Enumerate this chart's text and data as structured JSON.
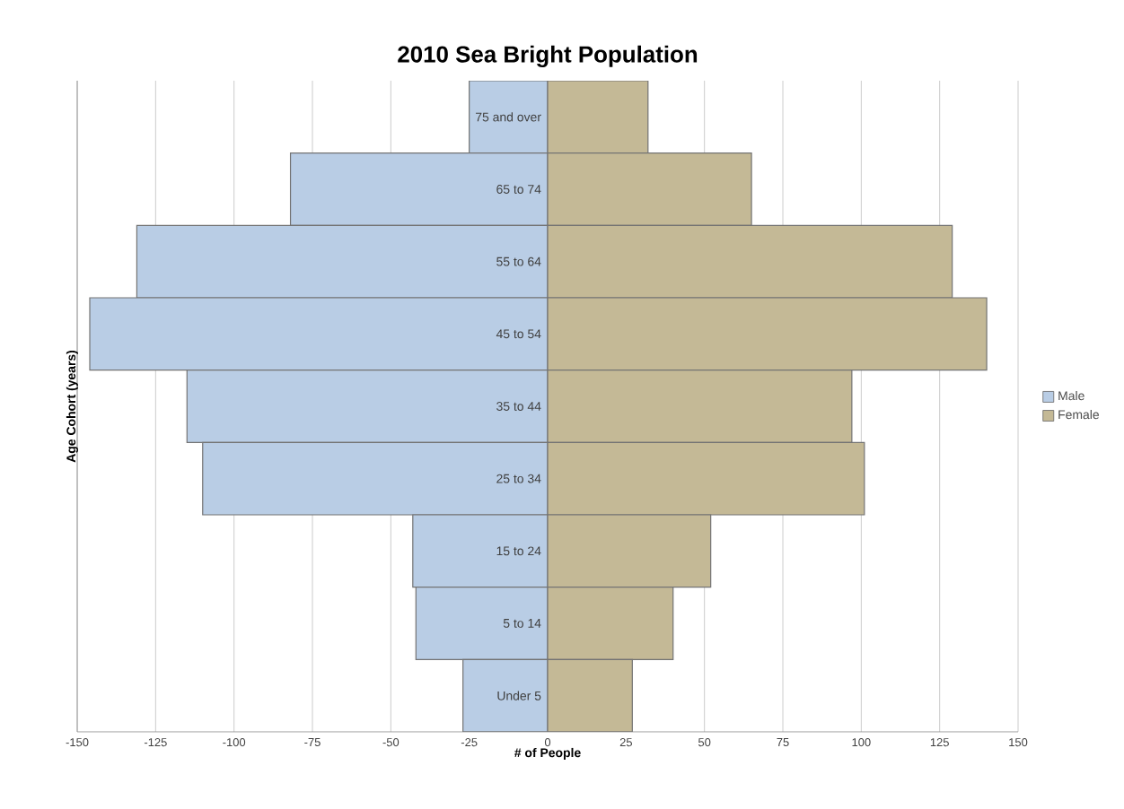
{
  "chart_data": {
    "type": "bar",
    "orientation": "horizontal",
    "title": "2010 Sea Bright Population",
    "xlabel": "# of People",
    "ylabel": "Age Cohort (years)",
    "categories": [
      "75 and over",
      "65 to 74",
      "55 to 64",
      "45 to 54",
      "35 to 44",
      "25 to 34",
      "15 to 24",
      "5 to 14",
      "Under 5"
    ],
    "series": [
      {
        "name": "Male",
        "color": "#b9cde5",
        "values": [
          -25,
          -82,
          -131,
          -146,
          -115,
          -110,
          -43,
          -42,
          -27
        ]
      },
      {
        "name": "Female",
        "color": "#c4b996",
        "values": [
          32,
          65,
          129,
          140,
          97,
          101,
          52,
          40,
          27
        ]
      }
    ],
    "xlim": [
      -150,
      150
    ],
    "xticks": [
      -150,
      -125,
      -100,
      -75,
      -50,
      -25,
      0,
      25,
      50,
      75,
      100,
      125,
      150
    ],
    "stacked": true,
    "grid": "x",
    "legend": "right"
  }
}
